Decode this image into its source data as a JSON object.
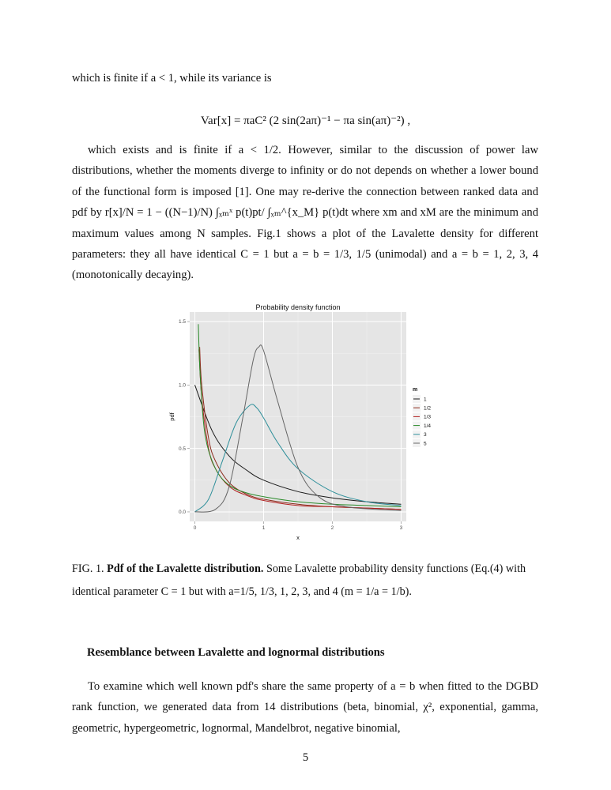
{
  "document": {
    "intro_line": "which is finite if a < 1, while its variance is",
    "equation": "Var[x] = πaC² (2 sin(2aπ)⁻¹ − πa sin(aπ)⁻²) ,",
    "paragraph1": "which exists and is finite if a < 1/2. However, similar to the discussion of power law distributions, whether the moments diverge to infinity or do not depends on whether a lower bound of the functional form is imposed [1]. One may re-derive the connection between ranked data and pdf by r[x]/N = 1 − ((N−1)/N) ∫ₓₘˣ p(t)pt/ ∫ₓₘ^{x_M} p(t)dt where xm and xM are the minimum and maximum values among N samples. Fig.1 shows a plot of the Lavalette density for different parameters: they all have identical C = 1 but a = b = 1/3, 1/5 (unimodal) and a = b = 1, 2, 3, 4 (monotonically decaying).",
    "caption_label": "FIG. 1.",
    "caption_title": "Pdf of the Lavalette distribution.",
    "caption_text": "Some Lavalette probability density functions (Eq.(4) with identical parameter C = 1 but with a=1/5, 1/3, 1, 2, 3, and 4 (m = 1/a = 1/b).",
    "section_heading": "Resemblance between Lavalette and lognormal distributions",
    "paragraph2": "To examine which well known pdf's share the same property of a = b when fitted to the DGBD rank function, we generated data from 14 distributions (beta, binomial, χ², exponential, gamma, geometric, hypergeometric, lognormal, Mandelbrot, negative binomial,",
    "page_number": "5"
  },
  "chart_data": {
    "type": "line",
    "title": "Probability density function",
    "xlabel": "x",
    "ylabel": "pdf",
    "xlim": [
      0,
      3
    ],
    "ylim": [
      0,
      1.5
    ],
    "x_ticks": [
      "0",
      "1",
      "2",
      "3"
    ],
    "y_ticks": [
      "0.0",
      "0.5",
      "1.0",
      "1.5"
    ],
    "legend_title": "m",
    "legend_position": "right",
    "background": "#e5e5e5",
    "grid": true,
    "series": [
      {
        "name": "1",
        "color": "#1a1a1a",
        "x": [
          0.0,
          0.25,
          0.5,
          0.75,
          1.0,
          1.5,
          2.0,
          2.5,
          3.0
        ],
        "y": [
          1.0,
          0.64,
          0.44,
          0.33,
          0.25,
          0.16,
          0.11,
          0.08,
          0.06
        ]
      },
      {
        "name": "1/2",
        "color": "#8b2a1a",
        "x": [
          0.07,
          0.1,
          0.2,
          0.3,
          0.5,
          0.75,
          1.0,
          1.5,
          2.0,
          2.5,
          3.0
        ],
        "y": [
          1.3,
          1.0,
          0.58,
          0.4,
          0.23,
          0.14,
          0.1,
          0.06,
          0.04,
          0.03,
          0.02
        ]
      },
      {
        "name": "1/3",
        "color": "#b22222",
        "x": [
          0.06,
          0.1,
          0.2,
          0.3,
          0.5,
          0.75,
          1.0,
          1.5,
          2.0,
          2.5,
          3.0
        ],
        "y": [
          1.28,
          0.9,
          0.5,
          0.34,
          0.2,
          0.13,
          0.09,
          0.05,
          0.04,
          0.03,
          0.02
        ]
      },
      {
        "name": "1/4",
        "color": "#2a8a2a",
        "x": [
          0.05,
          0.08,
          0.15,
          0.3,
          0.5,
          0.75,
          1.0,
          1.5,
          2.0,
          2.5,
          3.0
        ],
        "y": [
          1.48,
          1.05,
          0.6,
          0.34,
          0.21,
          0.15,
          0.12,
          0.08,
          0.06,
          0.05,
          0.04
        ]
      },
      {
        "name": "3",
        "color": "#2e8f9a",
        "x": [
          0.0,
          0.2,
          0.4,
          0.6,
          0.8,
          0.9,
          1.0,
          1.2,
          1.5,
          2.0,
          2.5,
          3.0
        ],
        "y": [
          0.0,
          0.1,
          0.4,
          0.7,
          0.84,
          0.82,
          0.74,
          0.55,
          0.34,
          0.16,
          0.08,
          0.05
        ]
      },
      {
        "name": "5",
        "color": "#666666",
        "x": [
          0.0,
          0.3,
          0.5,
          0.7,
          0.85,
          0.93,
          1.0,
          1.2,
          1.5,
          1.8,
          2.2,
          3.0
        ],
        "y": [
          0.0,
          0.02,
          0.2,
          0.75,
          1.2,
          1.3,
          1.27,
          0.88,
          0.35,
          0.12,
          0.04,
          0.01
        ]
      }
    ]
  }
}
